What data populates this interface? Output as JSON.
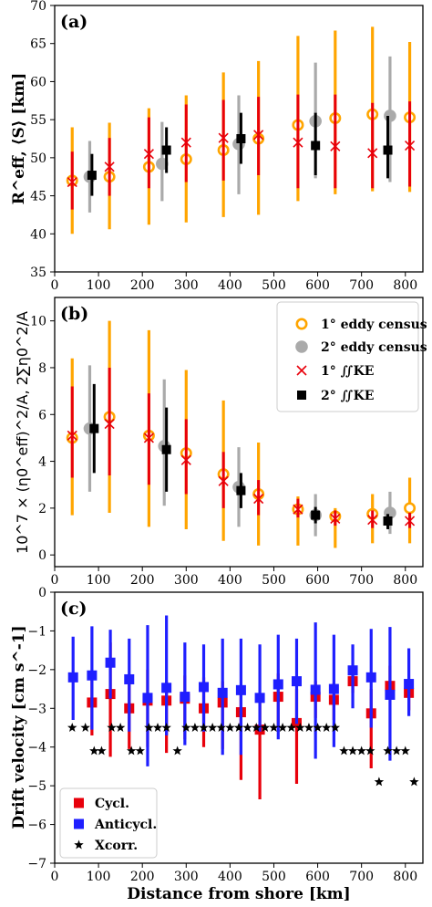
{
  "chart_data": [
    {
      "panel": "(a)",
      "type": "scatter",
      "ylabel": "R^eff, ⟨S⟩ [km]",
      "ylim": [
        35,
        70
      ],
      "yticks": [
        "35",
        "40",
        "45",
        "50",
        "55",
        "60",
        "65",
        "70"
      ],
      "xlim": [
        0,
        840
      ],
      "xticks": [
        "0",
        "100",
        "200",
        "300",
        "400",
        "500",
        "600",
        "700",
        "800"
      ],
      "series": [
        {
          "name": "1° eddy census",
          "color": "#FFA500",
          "marker": "ring",
          "x": [
            40,
            125,
            215,
            300,
            385,
            465,
            555,
            640,
            725,
            810
          ],
          "y": [
            47,
            47.5,
            48.8,
            49.8,
            51,
            52.5,
            54.3,
            55.2,
            55.7,
            55.3
          ],
          "ylo": [
            40,
            40.6,
            41.2,
            41.5,
            42.2,
            42.5,
            44.3,
            45.2,
            45.6,
            45.5
          ],
          "yhi": [
            54,
            54.6,
            56.5,
            58.2,
            61.2,
            62.7,
            66,
            66.7,
            67.2,
            65.2
          ]
        },
        {
          "name": "2° eddy census",
          "color": "#AAAAAA",
          "marker": "disc",
          "x": [
            80,
            245,
            420,
            595,
            765
          ],
          "y": [
            47.5,
            49.2,
            51.8,
            54.8,
            55.5
          ],
          "ylo": [
            42.8,
            44.3,
            45.2,
            47.3,
            46.8
          ],
          "yhi": [
            52.2,
            54.7,
            58.2,
            62.5,
            63.3
          ]
        },
        {
          "name": "1° ∬KE",
          "color": "#E8000B",
          "marker": "x",
          "x": [
            40,
            125,
            215,
            300,
            385,
            465,
            555,
            640,
            725,
            810
          ],
          "y": [
            46.8,
            48.8,
            50.5,
            52,
            52.6,
            53,
            52,
            51.5,
            50.6,
            51.6
          ],
          "ylo": [
            43.2,
            45,
            46,
            46.8,
            47,
            47.7,
            46,
            46,
            46,
            46.2
          ],
          "yhi": [
            50.8,
            52.6,
            55.3,
            57,
            57.6,
            58,
            58.3,
            58.3,
            57.2,
            57.4
          ]
        },
        {
          "name": "2° ∬KE",
          "color": "#000000",
          "marker": "square",
          "x": [
            85,
            255,
            425,
            595,
            760
          ],
          "y": [
            47.7,
            51,
            52.5,
            51.6,
            51
          ],
          "ylo": [
            45,
            48,
            49.2,
            47.7,
            47.3
          ],
          "yhi": [
            50.5,
            54,
            55.9,
            55.9,
            55.5
          ]
        }
      ]
    },
    {
      "panel": "(b)",
      "type": "scatter",
      "ylabel": "10^7 × (η0^eff)^2/A, 2∑η0^2/A",
      "ylim": [
        -0.5,
        11
      ],
      "yticks": [
        "0",
        "2",
        "4",
        "6",
        "8",
        "10"
      ],
      "xlim": [
        0,
        840
      ],
      "xticks": [
        "0",
        "100",
        "200",
        "300",
        "400",
        "500",
        "600",
        "700",
        "800"
      ],
      "legend_position": "upper right",
      "series": [
        {
          "name": "1° eddy census",
          "color": "#FFA500",
          "marker": "ring",
          "x": [
            40,
            125,
            215,
            300,
            385,
            465,
            555,
            640,
            725,
            810
          ],
          "y": [
            5,
            5.9,
            5.1,
            4.35,
            3.45,
            2.6,
            1.95,
            1.65,
            1.75,
            2
          ],
          "ylo": [
            1.7,
            1.8,
            1.2,
            1.1,
            0.6,
            0.4,
            0.4,
            0.3,
            0.5,
            0.5
          ],
          "yhi": [
            8.4,
            10,
            9.6,
            7.9,
            6.6,
            4.8,
            2.5,
            2,
            2.6,
            3.3
          ]
        },
        {
          "name": "2° eddy census",
          "color": "#AAAAAA",
          "marker": "disc",
          "x": [
            80,
            250,
            420,
            595,
            765
          ],
          "y": [
            5.4,
            4.65,
            2.9,
            1.7,
            1.8
          ],
          "ylo": [
            2.7,
            2.1,
            1.2,
            0.8,
            0.9
          ],
          "yhi": [
            8.1,
            7.5,
            4.6,
            2.6,
            2.7
          ]
        },
        {
          "name": "1° ∬KE",
          "color": "#E8000B",
          "marker": "x",
          "x": [
            40,
            125,
            215,
            300,
            385,
            465,
            555,
            640,
            725,
            810
          ],
          "y": [
            5.1,
            5.6,
            5,
            4.05,
            3.15,
            2.4,
            1.95,
            1.55,
            1.5,
            1.45
          ],
          "ylo": [
            3.3,
            3.4,
            3,
            2.6,
            2,
            1.7,
            1.6,
            1.25,
            1.15,
            1.15
          ],
          "yhi": [
            7.2,
            8,
            6.9,
            5.8,
            4.4,
            3.2,
            2.4,
            1.9,
            1.9,
            1.8
          ]
        },
        {
          "name": "2° ∬KE",
          "color": "#000000",
          "marker": "square",
          "x": [
            90,
            255,
            425,
            595,
            760
          ],
          "y": [
            5.4,
            4.5,
            2.75,
            1.7,
            1.45
          ],
          "ylo": [
            3.5,
            2.7,
            2,
            1.35,
            1.1
          ],
          "yhi": [
            7.3,
            6.3,
            3.5,
            2.05,
            1.75
          ]
        }
      ]
    },
    {
      "panel": "(c)",
      "type": "scatter",
      "ylabel": "Drift velocity [cm s^-1]",
      "xlabel": "Distance from shore [km]",
      "ylim": [
        -7,
        0
      ],
      "yticks": [
        "−7",
        "−6",
        "−5",
        "−4",
        "−3",
        "−2",
        "−1",
        "0"
      ],
      "xlim": [
        0,
        840
      ],
      "xticks": [
        "0",
        "100",
        "200",
        "300",
        "400",
        "500",
        "600",
        "700",
        "800"
      ],
      "legend_position": "lower left",
      "series": [
        {
          "name": "Cycl.",
          "color": "#E8000B",
          "marker": "square",
          "x": [
            85,
            127,
            170,
            212,
            255,
            297,
            340,
            383,
            425,
            468,
            510,
            552,
            595,
            637,
            680,
            722,
            765,
            808
          ],
          "y": [
            -2.85,
            -2.63,
            -3,
            -2.8,
            -2.8,
            -2.75,
            -3,
            -2.85,
            -3.1,
            -3.55,
            -2.7,
            -3.38,
            -2.7,
            -2.78,
            -2.3,
            -3.13,
            -2.42,
            -2.6
          ],
          "ylo": [
            -3.7,
            -4.25,
            -4.05,
            -4,
            -4.15,
            -3.8,
            -4,
            -4.05,
            -4.85,
            -5.35,
            -3.5,
            -4.95,
            -3.25,
            -3.3,
            -2.6,
            -4.55,
            -2.75,
            -3.05
          ],
          "yhi": [
            -2.2,
            -1.3,
            -2.15,
            -2,
            -2.3,
            -2.15,
            -2.2,
            -2.3,
            -2.6,
            -2.6,
            -2.1,
            -2.5,
            -2.3,
            -2.35,
            -1.95,
            -2.5,
            -1.9,
            -2.25
          ]
        },
        {
          "name": "Anticycl.",
          "color": "#1F1FFF",
          "marker": "square",
          "x": [
            42,
            85,
            127,
            170,
            212,
            255,
            297,
            340,
            383,
            425,
            468,
            510,
            552,
            595,
            637,
            680,
            722,
            765,
            808
          ],
          "y": [
            -2.2,
            -2.15,
            -1.82,
            -2.25,
            -2.73,
            -2.47,
            -2.7,
            -2.45,
            -2.6,
            -2.53,
            -2.73,
            -2.38,
            -2.3,
            -2.52,
            -2.5,
            -2.02,
            -2.2,
            -2.65,
            -2.37
          ],
          "ylo": [
            -3.3,
            -3.55,
            -2.75,
            -3.6,
            -4.5,
            -3.7,
            -3.95,
            -3.6,
            -4.2,
            -4.2,
            -3.6,
            -3.8,
            -3.4,
            -4.3,
            -4,
            -3,
            -3.5,
            -4.35,
            -3.2
          ],
          "yhi": [
            -1.15,
            -0.88,
            -0.97,
            -1.2,
            -0.85,
            -0.6,
            -1.3,
            -1.35,
            -1.2,
            -1.2,
            -1.35,
            -1.1,
            -1.2,
            -0.78,
            -1.1,
            -1.35,
            -0.95,
            -0.9,
            -1.45
          ]
        },
        {
          "name": "Xcorr.",
          "color": "#000000",
          "marker": "star",
          "x": [
            40,
            70,
            90,
            107,
            130,
            150,
            175,
            195,
            215,
            235,
            255,
            280,
            300,
            320,
            340,
            360,
            380,
            400,
            420,
            440,
            460,
            480,
            500,
            520,
            540,
            560,
            580,
            600,
            620,
            640,
            660,
            680,
            700,
            720,
            740,
            760,
            780,
            800,
            820
          ],
          "y": [
            -3.5,
            -3.5,
            -4.1,
            -4.1,
            -3.5,
            -3.5,
            -4.1,
            -4.1,
            -3.5,
            -3.5,
            -3.5,
            -4.1,
            -3.5,
            -3.5,
            -3.5,
            -3.5,
            -3.5,
            -3.5,
            -3.5,
            -3.5,
            -3.5,
            -3.5,
            -3.5,
            -3.5,
            -3.5,
            -3.5,
            -3.5,
            -3.5,
            -3.5,
            -3.5,
            -4.1,
            -4.1,
            -4.1,
            -4.1,
            -4.9,
            -4.1,
            -4.1,
            -4.1,
            -4.9
          ]
        }
      ]
    }
  ]
}
